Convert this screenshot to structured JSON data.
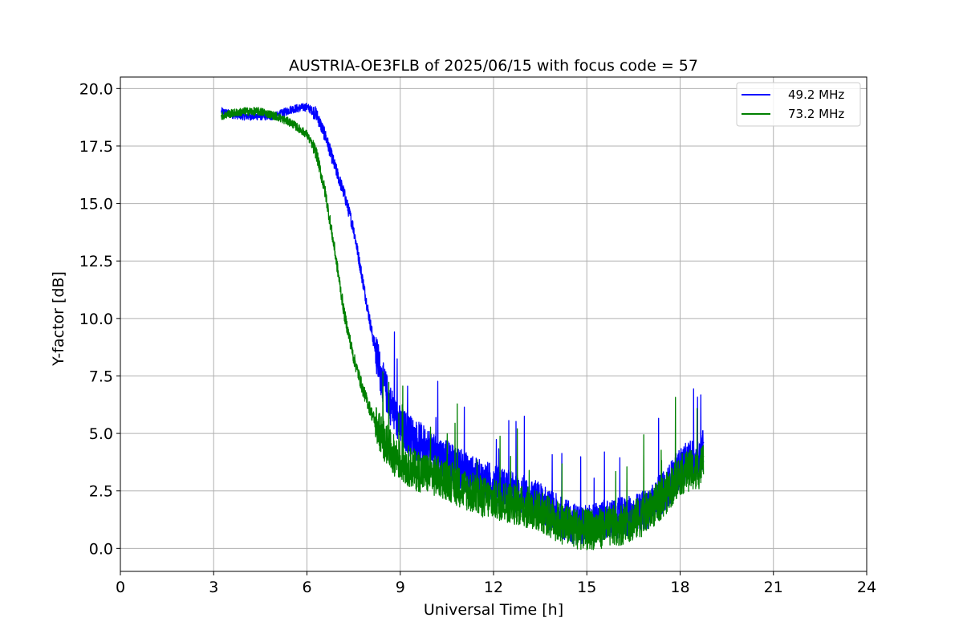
{
  "chart_data": {
    "type": "line",
    "title": "AUSTRIA-OE3FLB of 2025/06/15 with focus code = 57",
    "xlabel": "Universal Time [h]",
    "ylabel": "Y-factor [dB]",
    "xlim": [
      0,
      24
    ],
    "ylim": [
      -1.0,
      20.5
    ],
    "xticks": [
      0,
      3,
      6,
      9,
      12,
      15,
      18,
      21,
      24
    ],
    "yticks": [
      0.0,
      2.5,
      5.0,
      7.5,
      10.0,
      12.5,
      15.0,
      17.5,
      20.0
    ],
    "xtick_labels": [
      "0",
      "3",
      "6",
      "9",
      "12",
      "15",
      "18",
      "21",
      "24"
    ],
    "ytick_labels": [
      "0.0",
      "2.5",
      "5.0",
      "7.5",
      "10.0",
      "12.5",
      "15.0",
      "17.5",
      "20.0"
    ],
    "grid": true,
    "legend_position": "top-right",
    "series": [
      {
        "name": "49.2 MHz",
        "color": "#0000ff",
        "x": [
          3.25,
          3.5,
          4.0,
          4.5,
          5.0,
          5.5,
          6.0,
          6.3,
          6.6,
          6.9,
          7.2,
          7.5,
          7.8,
          8.1,
          8.4,
          8.7,
          9.0,
          9.5,
          10.0,
          10.5,
          11.0,
          11.5,
          12.0,
          12.5,
          13.0,
          13.5,
          14.0,
          14.5,
          15.0,
          15.5,
          16.0,
          16.5,
          17.0,
          17.5,
          18.0,
          18.3,
          18.5,
          18.7,
          18.75
        ],
        "y": [
          19.0,
          18.9,
          18.8,
          18.8,
          18.8,
          19.1,
          19.2,
          18.9,
          17.9,
          16.6,
          15.4,
          13.9,
          11.6,
          9.3,
          7.4,
          6.2,
          5.3,
          4.7,
          4.3,
          3.8,
          3.4,
          3.0,
          2.8,
          2.5,
          2.3,
          2.0,
          1.5,
          1.1,
          1.0,
          1.2,
          1.3,
          1.4,
          1.8,
          2.5,
          3.5,
          3.8,
          3.9,
          4.2,
          4.6
        ]
      },
      {
        "name": "73.2 MHz",
        "color": "#008000",
        "x": [
          3.25,
          3.5,
          4.0,
          4.5,
          5.0,
          5.5,
          6.0,
          6.3,
          6.6,
          6.9,
          7.2,
          7.5,
          7.8,
          8.1,
          8.4,
          8.7,
          9.0,
          9.5,
          10.0,
          10.5,
          11.0,
          11.5,
          12.0,
          12.5,
          13.0,
          13.5,
          14.0,
          14.5,
          15.0,
          15.5,
          16.0,
          16.5,
          17.0,
          17.5,
          18.0,
          18.3,
          18.5,
          18.7,
          18.75
        ],
        "y": [
          18.8,
          18.9,
          19.0,
          19.0,
          18.8,
          18.5,
          18.0,
          17.2,
          15.4,
          12.9,
          10.2,
          8.3,
          6.9,
          5.8,
          4.9,
          4.2,
          3.8,
          3.4,
          3.2,
          3.0,
          2.6,
          2.3,
          2.1,
          2.0,
          1.8,
          1.6,
          1.2,
          0.9,
          0.8,
          0.9,
          1.0,
          1.2,
          1.6,
          2.3,
          3.2,
          3.4,
          3.3,
          3.6,
          4.0
        ]
      }
    ]
  }
}
